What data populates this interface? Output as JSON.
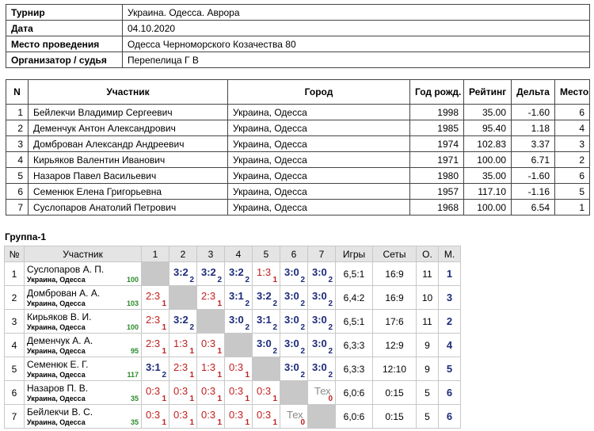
{
  "info": {
    "rows": [
      [
        "Турнир",
        "Украина. Одесса. Аврора"
      ],
      [
        "Дата",
        "04.10.2020"
      ],
      [
        "Место проведения",
        "Одесса Черноморского Козачества 80"
      ],
      [
        "Организатор / судья",
        "Перепелица Г В"
      ]
    ]
  },
  "participants": {
    "headers": [
      "N",
      "Участник",
      "Город",
      "Год рожд.",
      "Рейтинг",
      "Дельта",
      "Место"
    ],
    "rows": [
      [
        "1",
        "Бейлекчи Владимир Сергеевич",
        "Украина, Одесса",
        "1998",
        "35.00",
        "-1.60",
        "6"
      ],
      [
        "2",
        "Деменчук Антон Александрович",
        "Украина, Одесса",
        "1985",
        "95.40",
        "1.18",
        "4"
      ],
      [
        "3",
        "Домброван  Александр Андреевич",
        "Украина, Одесса",
        "1974",
        "102.83",
        "3.37",
        "3"
      ],
      [
        "4",
        "Кирьяков Валентин Иванович",
        "Украина, Одесса",
        "1971",
        "100.00",
        "6.71",
        "2"
      ],
      [
        "5",
        "Назаров Павел Васильевич",
        "Украина, Одесса",
        "1980",
        "35.00",
        "-1.60",
        "6"
      ],
      [
        "6",
        "Семенюк Елена Григорьевна",
        "Украина, Одесса",
        "1957",
        "117.10",
        "-1.16",
        "5"
      ],
      [
        "7",
        "Суслопаров  Анатолий Петрович",
        "Украина, Одесса",
        "1968",
        "100.00",
        "6.54",
        "1"
      ]
    ]
  },
  "group": {
    "title": "Группа-1",
    "headers": [
      "№",
      "Участник",
      "1",
      "2",
      "3",
      "4",
      "5",
      "6",
      "7",
      "Игры",
      "Сеты",
      "О.",
      "М."
    ],
    "rows": [
      {
        "n": "1",
        "name": "Суслопаров А. П.",
        "city": "Украина, Одесса",
        "rating": "100",
        "cells": [
          null,
          {
            "score": "3:2",
            "points": "2"
          },
          {
            "score": "3:2",
            "points": "2"
          },
          {
            "score": "3:2",
            "points": "2"
          },
          {
            "score": "1:3",
            "points": "1"
          },
          {
            "score": "3:0",
            "points": "2"
          },
          {
            "score": "3:0",
            "points": "2"
          }
        ],
        "games": "6,5:1",
        "sets": "16:9",
        "score": "11",
        "place": "1"
      },
      {
        "n": "2",
        "name": "Домброван А. А.",
        "city": "Украина, Одесса",
        "rating": "103",
        "cells": [
          {
            "score": "2:3",
            "points": "1"
          },
          null,
          {
            "score": "2:3",
            "points": "1"
          },
          {
            "score": "3:1",
            "points": "2"
          },
          {
            "score": "3:2",
            "points": "2"
          },
          {
            "score": "3:0",
            "points": "2"
          },
          {
            "score": "3:0",
            "points": "2"
          }
        ],
        "games": "6,4:2",
        "sets": "16:9",
        "score": "10",
        "place": "3"
      },
      {
        "n": "3",
        "name": "Кирьяков В. И.",
        "city": "Украина, Одесса",
        "rating": "100",
        "cells": [
          {
            "score": "2:3",
            "points": "1"
          },
          {
            "score": "3:2",
            "points": "2"
          },
          null,
          {
            "score": "3:0",
            "points": "2"
          },
          {
            "score": "3:1",
            "points": "2"
          },
          {
            "score": "3:0",
            "points": "2"
          },
          {
            "score": "3:0",
            "points": "2"
          }
        ],
        "games": "6,5:1",
        "sets": "17:6",
        "score": "11",
        "place": "2"
      },
      {
        "n": "4",
        "name": "Деменчук А. А.",
        "city": "Украина, Одесса",
        "rating": "95",
        "cells": [
          {
            "score": "2:3",
            "points": "1"
          },
          {
            "score": "1:3",
            "points": "1"
          },
          {
            "score": "0:3",
            "points": "1"
          },
          null,
          {
            "score": "3:0",
            "points": "2"
          },
          {
            "score": "3:0",
            "points": "2"
          },
          {
            "score": "3:0",
            "points": "2"
          }
        ],
        "games": "6,3:3",
        "sets": "12:9",
        "score": "9",
        "place": "4"
      },
      {
        "n": "5",
        "name": "Семенюк Е. Г.",
        "city": "Украина, Одесса",
        "rating": "117",
        "cells": [
          {
            "score": "3:1",
            "points": "2"
          },
          {
            "score": "2:3",
            "points": "1"
          },
          {
            "score": "1:3",
            "points": "1"
          },
          {
            "score": "0:3",
            "points": "1"
          },
          null,
          {
            "score": "3:0",
            "points": "2"
          },
          {
            "score": "3:0",
            "points": "2"
          }
        ],
        "games": "6,3:3",
        "sets": "12:10",
        "score": "9",
        "place": "5"
      },
      {
        "n": "6",
        "name": "Назаров П. В.",
        "city": "Украина, Одесса",
        "rating": "35",
        "cells": [
          {
            "score": "0:3",
            "points": "1"
          },
          {
            "score": "0:3",
            "points": "1"
          },
          {
            "score": "0:3",
            "points": "1"
          },
          {
            "score": "0:3",
            "points": "1"
          },
          {
            "score": "0:3",
            "points": "1"
          },
          null,
          {
            "score": "Тех",
            "points": "0"
          }
        ],
        "games": "6,0:6",
        "sets": "0:15",
        "score": "5",
        "place": "6"
      },
      {
        "n": "7",
        "name": "Бейлекчи В. С.",
        "city": "Украина, Одесса",
        "rating": "35",
        "cells": [
          {
            "score": "0:3",
            "points": "1"
          },
          {
            "score": "0:3",
            "points": "1"
          },
          {
            "score": "0:3",
            "points": "1"
          },
          {
            "score": "0:3",
            "points": "1"
          },
          {
            "score": "0:3",
            "points": "1"
          },
          {
            "score": "Тех",
            "points": "0"
          },
          null
        ],
        "games": "6,0:6",
        "sets": "0:15",
        "score": "5",
        "place": "6"
      }
    ]
  }
}
